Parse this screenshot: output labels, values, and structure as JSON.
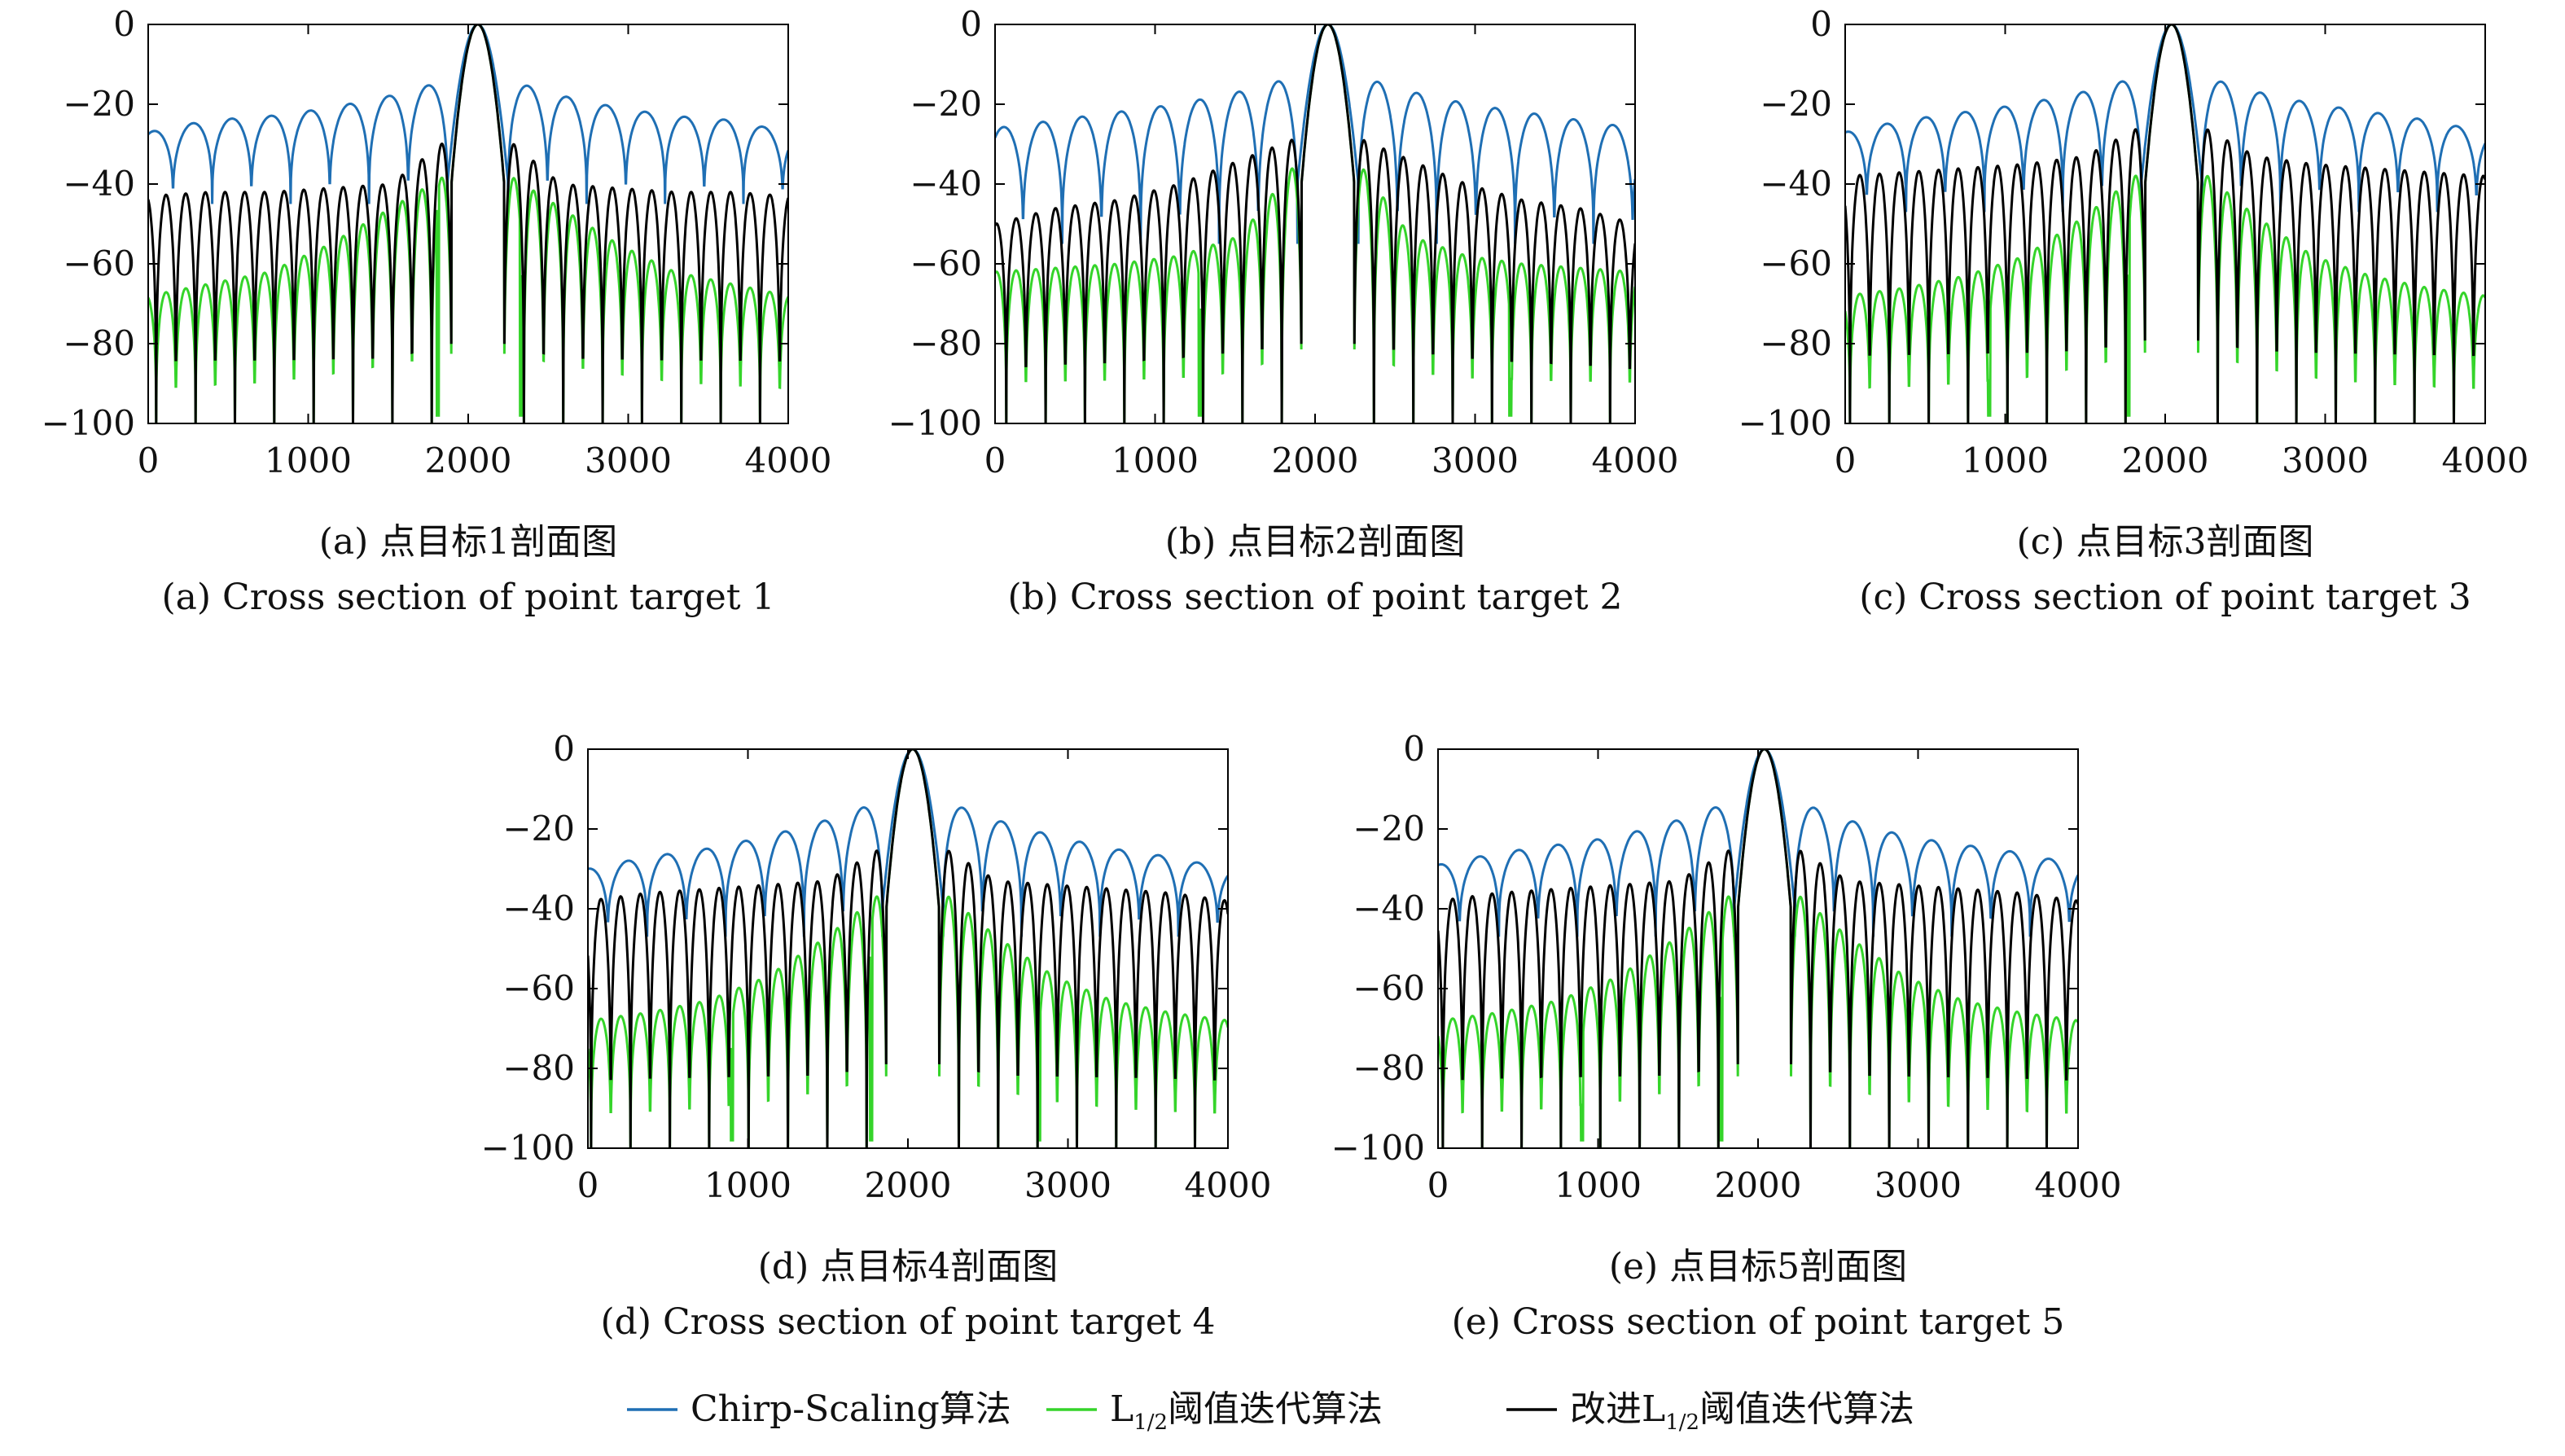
{
  "chart_data": [
    {
      "type": "line",
      "caption_zh": "(a) 点目标1剖面图",
      "caption_en": "(a) Cross section of point target 1",
      "xlim": [
        0,
        4000
      ],
      "ylim": [
        -100,
        0
      ],
      "xticks": [
        "0",
        "1000",
        "2000",
        "3000",
        "4000"
      ],
      "yticks": [
        "0",
        "−20",
        "−40",
        "−60",
        "−80",
        "−100"
      ],
      "grid": false,
      "main_lobe_center": 2060,
      "series": [
        {
          "key": "cs",
          "sidelobe_period": 245,
          "peak_levels": [
            -27,
            -24,
            -23,
            -21,
            -18,
            -14
          ],
          "null_floor": -45
        },
        {
          "key": "l12",
          "sidelobe_period": 123,
          "peak_levels": [
            -68,
            -65,
            -62,
            -55,
            -46,
            -37
          ],
          "null_floor": -100,
          "notches": [
            1810,
            2330
          ]
        },
        {
          "key": "imp",
          "sidelobe_period": 123,
          "peak_levels": [
            -43,
            -42,
            -42,
            -41,
            -40,
            -28
          ],
          "null_floor": -100,
          "hard_floor": [
            1680,
            2440
          ]
        }
      ]
    },
    {
      "type": "line",
      "caption_zh": "(b) 点目标2剖面图",
      "caption_en": "(b) Cross section of point target 2",
      "xlim": [
        0,
        4000
      ],
      "ylim": [
        -100,
        0
      ],
      "xticks": [
        "0",
        "1000",
        "2000",
        "3000",
        "4000"
      ],
      "yticks": [
        "0",
        "−20",
        "−40",
        "−60",
        "−80",
        "−100"
      ],
      "grid": false,
      "main_lobe_center": 2080,
      "series": [
        {
          "key": "cs",
          "sidelobe_period": 245,
          "peak_levels": [
            -26,
            -24,
            -22,
            -20,
            -17,
            -13
          ],
          "null_floor": -55
        },
        {
          "key": "l12",
          "sidelobe_period": 123,
          "peak_levels": [
            -62,
            -61,
            -60,
            -58,
            -53,
            -33
          ],
          "null_floor": -100,
          "notches": [
            1280,
            3220
          ]
        },
        {
          "key": "imp",
          "sidelobe_period": 123,
          "peak_levels": [
            -50,
            -46,
            -44,
            -40,
            -34,
            -28
          ],
          "null_floor": -100,
          "hard_floor": [
            1800,
            2440
          ]
        }
      ]
    },
    {
      "type": "line",
      "caption_zh": "(c) 点目标3剖面图",
      "caption_en": "(c) Cross section of point target 3",
      "xlim": [
        0,
        4000
      ],
      "ylim": [
        -100,
        0
      ],
      "xticks": [
        "0",
        "1000",
        "2000",
        "3000",
        "4000"
      ],
      "yticks": [
        "0",
        "−20",
        "−40",
        "−60",
        "−80",
        "−100"
      ],
      "grid": false,
      "main_lobe_center": 2040,
      "series": [
        {
          "key": "cs",
          "sidelobe_period": 245,
          "peak_levels": [
            -27,
            -24,
            -22,
            -20,
            -17,
            -13
          ],
          "null_floor": -47
        },
        {
          "key": "l12",
          "sidelobe_period": 123,
          "peak_levels": [
            -68,
            -66,
            -63,
            -58,
            -48,
            -36
          ],
          "null_floor": -100,
          "notches": [
            900,
            1770
          ]
        },
        {
          "key": "imp",
          "sidelobe_period": 123,
          "peak_levels": [
            -38,
            -37,
            -36,
            -35,
            -33,
            -25
          ],
          "null_floor": -100,
          "hard_floor": [
            1680,
            2310
          ]
        }
      ]
    },
    {
      "type": "line",
      "caption_zh": "(d) 点目标4剖面图",
      "caption_en": "(d) Cross section of point target 4",
      "xlim": [
        0,
        4000
      ],
      "ylim": [
        -100,
        0
      ],
      "xticks": [
        "0",
        "1000",
        "2000",
        "3000",
        "4000"
      ],
      "yticks": [
        "0",
        "−20",
        "−40",
        "−60",
        "−80",
        "−100"
      ],
      "grid": false,
      "main_lobe_center": 2030,
      "series": [
        {
          "key": "cs",
          "sidelobe_period": 245,
          "peak_levels": [
            -30,
            -27,
            -25,
            -22,
            -18,
            -13
          ],
          "null_floor": -47
        },
        {
          "key": "l12",
          "sidelobe_period": 123,
          "peak_levels": [
            -68,
            -66,
            -63,
            -57,
            -47,
            -35
          ],
          "null_floor": -100,
          "notches": [
            900,
            1770,
            2820
          ]
        },
        {
          "key": "imp",
          "sidelobe_period": 123,
          "peak_levels": [
            -38,
            -36,
            -35,
            -34,
            -33,
            -24
          ],
          "null_floor": -100,
          "hard_floor": [
            1680,
            2310
          ]
        }
      ]
    },
    {
      "type": "line",
      "caption_zh": "(e) 点目标5剖面图",
      "caption_en": "(e) Cross section of point target 5",
      "xlim": [
        0,
        4000
      ],
      "ylim": [
        -100,
        0
      ],
      "xticks": [
        "0",
        "1000",
        "2000",
        "3000",
        "4000"
      ],
      "yticks": [
        "0",
        "−20",
        "−40",
        "−60",
        "−80",
        "−100"
      ],
      "grid": false,
      "main_lobe_center": 2040,
      "series": [
        {
          "key": "cs",
          "sidelobe_period": 245,
          "peak_levels": [
            -29,
            -26,
            -24,
            -22,
            -18,
            -13
          ],
          "null_floor": -47
        },
        {
          "key": "l12",
          "sidelobe_period": 123,
          "peak_levels": [
            -68,
            -66,
            -63,
            -57,
            -47,
            -35
          ],
          "null_floor": -100,
          "notches": [
            900,
            1770
          ]
        },
        {
          "key": "imp",
          "sidelobe_period": 123,
          "peak_levels": [
            -38,
            -36,
            -35,
            -34,
            -33,
            -24
          ],
          "null_floor": -100,
          "hard_floor": [
            1680,
            2310
          ]
        }
      ]
    }
  ],
  "legend": {
    "placement": "bottom-center",
    "items": [
      {
        "key": "cs",
        "text": "Chirp-Scaling算法",
        "color": "#1f6fb4"
      },
      {
        "key": "l12",
        "prefix": "L",
        "sub": "1/2",
        "suffix": "阈值迭代算法",
        "color": "#35d42a"
      },
      {
        "key": "imp",
        "prefix": "改进L",
        "sub": "1/2",
        "suffix": "阈值迭代算法",
        "color": "#000000"
      }
    ]
  }
}
